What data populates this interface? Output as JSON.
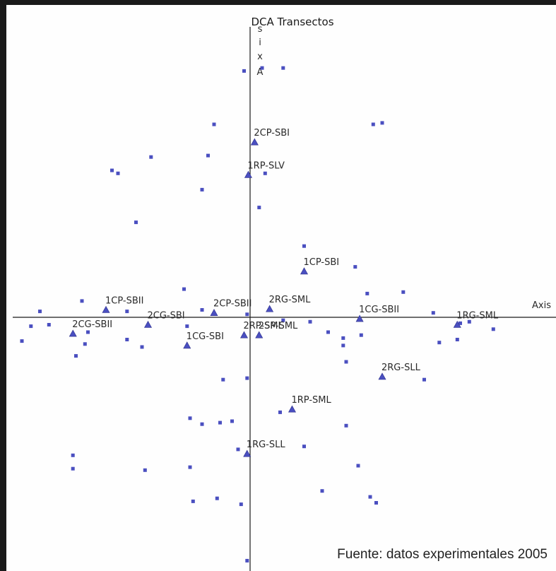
{
  "chart_data": {
    "type": "scatter",
    "title": "DCA Transectos",
    "x_axis_label": "Axis",
    "y_axis_label_vertical": [
      "s",
      "i",
      "x",
      "A"
    ],
    "source_note": "Fuente: datos experimentales 2005",
    "colors": {
      "species": "#4a4fc0",
      "sites": "#4a4fc0",
      "axes": "#1a1a1a"
    },
    "sites": [
      {
        "name": "2CP-SBI",
        "x": 0.15,
        "y": 5.9
      },
      {
        "name": "1RP-SLV",
        "x": -0.06,
        "y": 4.8
      },
      {
        "name": "1CP-SBI",
        "x": 1.8,
        "y": 1.55
      },
      {
        "name": "1CP-SBII",
        "x": -4.8,
        "y": 0.25
      },
      {
        "name": "2CP-SBII",
        "x": -1.2,
        "y": 0.15
      },
      {
        "name": "2RG-SML",
        "x": 0.65,
        "y": 0.28
      },
      {
        "name": "1CG-SBII",
        "x": 3.65,
        "y": -0.05
      },
      {
        "name": "1RG-SML",
        "x": 6.9,
        "y": -0.25
      },
      {
        "name": "2CG-SBI",
        "x": -3.4,
        "y": -0.25
      },
      {
        "name": "2CG-SBII",
        "x": -5.9,
        "y": -0.55
      },
      {
        "name": "1CG-SBI",
        "x": -2.1,
        "y": -0.95
      },
      {
        "name": "2RP-SML",
        "x": -0.2,
        "y": -0.6
      },
      {
        "name": "2SP-SML",
        "x": 0.3,
        "y": -0.6
      },
      {
        "name": "2RG-SLL",
        "x": 4.4,
        "y": -2.0
      },
      {
        "name": "1RP-SML",
        "x": 1.4,
        "y": -3.1
      },
      {
        "name": "1RG-SLL",
        "x": -0.1,
        "y": -4.6
      }
    ],
    "species": [
      [
        -0.2,
        8.3
      ],
      [
        0.4,
        8.4
      ],
      [
        1.1,
        8.4
      ],
      [
        -1.2,
        6.5
      ],
      [
        4.1,
        6.5
      ],
      [
        4.4,
        6.55
      ],
      [
        -3.3,
        5.4
      ],
      [
        -1.4,
        5.45
      ],
      [
        0.5,
        4.85
      ],
      [
        -4.6,
        4.95
      ],
      [
        -4.4,
        4.85
      ],
      [
        -1.6,
        4.3
      ],
      [
        0.3,
        3.7
      ],
      [
        -3.8,
        3.2
      ],
      [
        1.8,
        2.4
      ],
      [
        3.5,
        1.7
      ],
      [
        -2.2,
        0.95
      ],
      [
        3.9,
        0.8
      ],
      [
        5.1,
        0.85
      ],
      [
        -5.6,
        0.55
      ],
      [
        -4.1,
        0.2
      ],
      [
        -1.6,
        0.25
      ],
      [
        -0.1,
        0.1
      ],
      [
        -7.0,
        0.2
      ],
      [
        6.1,
        0.15
      ],
      [
        -7.3,
        -0.3
      ],
      [
        -6.7,
        -0.25
      ],
      [
        -5.4,
        -0.5
      ],
      [
        -4.1,
        -0.75
      ],
      [
        -2.1,
        -0.3
      ],
      [
        -7.6,
        -0.8
      ],
      [
        -5.5,
        -0.9
      ],
      [
        -3.6,
        -1.0
      ],
      [
        -5.8,
        -1.3
      ],
      [
        1.1,
        -0.1
      ],
      [
        2.0,
        -0.15
      ],
      [
        2.6,
        -0.5
      ],
      [
        3.1,
        -0.7
      ],
      [
        3.7,
        -0.6
      ],
      [
        3.1,
        -0.95
      ],
      [
        6.3,
        -0.85
      ],
      [
        7.0,
        -0.2
      ],
      [
        7.3,
        -0.15
      ],
      [
        8.1,
        -0.4
      ],
      [
        6.9,
        -0.75
      ],
      [
        3.2,
        -1.5
      ],
      [
        5.8,
        -2.1
      ],
      [
        -0.9,
        -2.1
      ],
      [
        -0.1,
        -2.05
      ],
      [
        1.0,
        -3.2
      ],
      [
        -2.0,
        -3.4
      ],
      [
        -1.6,
        -3.6
      ],
      [
        -1.0,
        -3.55
      ],
      [
        -0.6,
        -3.5
      ],
      [
        3.2,
        -3.65
      ],
      [
        -0.4,
        -4.45
      ],
      [
        1.8,
        -4.35
      ],
      [
        -5.9,
        -4.65
      ],
      [
        -5.9,
        -5.1
      ],
      [
        -3.5,
        -5.15
      ],
      [
        -2.0,
        -5.05
      ],
      [
        3.6,
        -5.0
      ],
      [
        2.4,
        -5.85
      ],
      [
        4.0,
        -6.05
      ],
      [
        4.2,
        -6.25
      ],
      [
        -1.9,
        -6.2
      ],
      [
        -1.1,
        -6.1
      ],
      [
        -0.3,
        -6.3
      ],
      [
        -0.1,
        -8.2
      ]
    ]
  }
}
